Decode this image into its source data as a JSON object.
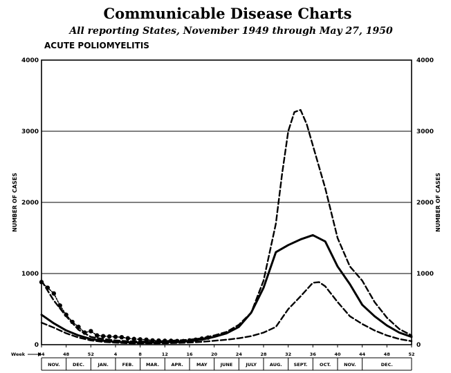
{
  "title": "Communicable Disease Charts",
  "subtitle": "All reporting States, November 1949 through May 27, 1950",
  "chart_data": {
    "type": "line",
    "panel_title": "ACUTE POLIOMYELITIS",
    "ylabel": "NUMBER OF CASES",
    "ylim": [
      0,
      4000
    ],
    "yticks": [
      "0",
      "1000",
      "2000",
      "3000",
      "4000"
    ],
    "week_prefix": "Week",
    "week_ticks": [
      {
        "week": 44,
        "label": "44"
      },
      {
        "week": 48,
        "label": "48"
      },
      {
        "week": 52,
        "label": "52"
      },
      {
        "week": 56,
        "label": "4"
      },
      {
        "week": 60,
        "label": "8"
      },
      {
        "week": 64,
        "label": "12"
      },
      {
        "week": 68,
        "label": "16"
      },
      {
        "week": 72,
        "label": "20"
      },
      {
        "week": 76,
        "label": "24"
      },
      {
        "week": 80,
        "label": "28"
      },
      {
        "week": 84,
        "label": "32"
      },
      {
        "week": 88,
        "label": "36"
      },
      {
        "week": 92,
        "label": "40"
      },
      {
        "week": 96,
        "label": "44"
      },
      {
        "week": 100,
        "label": "48"
      },
      {
        "week": 104,
        "label": "52"
      }
    ],
    "months": [
      {
        "label": "NOV.",
        "start": 44,
        "end": 48
      },
      {
        "label": "DEC.",
        "start": 48,
        "end": 52
      },
      {
        "label": "JAN.",
        "start": 52,
        "end": 56
      },
      {
        "label": "FEB.",
        "start": 56,
        "end": 60
      },
      {
        "label": "MAR.",
        "start": 60,
        "end": 64
      },
      {
        "label": "APR.",
        "start": 64,
        "end": 68
      },
      {
        "label": "MAY",
        "start": 68,
        "end": 72
      },
      {
        "label": "JUNE",
        "start": 72,
        "end": 76
      },
      {
        "label": "JULY",
        "start": 76,
        "end": 80
      },
      {
        "label": "AUG.",
        "start": 80,
        "end": 84
      },
      {
        "label": "SEPT.",
        "start": 84,
        "end": 88
      },
      {
        "label": "OCT.",
        "start": 88,
        "end": 92
      },
      {
        "label": "NOV.",
        "start": 92,
        "end": 96
      },
      {
        "label": "DEC.",
        "start": 96,
        "end": 104
      }
    ],
    "series": [
      {
        "style": "dashed-upper",
        "x": [
          44,
          46,
          48,
          50,
          52,
          54,
          56,
          58,
          60,
          62,
          64,
          66,
          68,
          70,
          72,
          74,
          76,
          78,
          80,
          82,
          83,
          84,
          85,
          86,
          87,
          88,
          90,
          92,
          94,
          96,
          98,
          100,
          102,
          104
        ],
        "y": [
          900,
          620,
          400,
          210,
          110,
          80,
          60,
          50,
          45,
          45,
          50,
          60,
          70,
          90,
          130,
          180,
          280,
          450,
          900,
          1700,
          2400,
          3000,
          3270,
          3300,
          3100,
          2800,
          2200,
          1500,
          1100,
          900,
          600,
          380,
          220,
          130
        ]
      },
      {
        "style": "solid-median",
        "x": [
          44,
          46,
          48,
          50,
          52,
          54,
          56,
          58,
          60,
          62,
          64,
          66,
          68,
          70,
          72,
          74,
          76,
          78,
          80,
          82,
          84,
          86,
          88,
          90,
          92,
          94,
          96,
          98,
          100,
          102,
          104
        ],
        "y": [
          420,
          300,
          200,
          130,
          80,
          55,
          40,
          35,
          30,
          30,
          35,
          40,
          50,
          70,
          110,
          160,
          250,
          450,
          800,
          1300,
          1400,
          1480,
          1540,
          1450,
          1100,
          850,
          560,
          400,
          270,
          170,
          110
        ]
      },
      {
        "style": "dashed-lower",
        "x": [
          44,
          46,
          48,
          50,
          52,
          54,
          56,
          58,
          60,
          62,
          64,
          66,
          68,
          70,
          72,
          74,
          76,
          78,
          80,
          82,
          84,
          86,
          88,
          89,
          90,
          92,
          94,
          96,
          98,
          100,
          102,
          104
        ],
        "y": [
          310,
          240,
          160,
          100,
          60,
          40,
          28,
          20,
          18,
          18,
          20,
          24,
          30,
          40,
          55,
          70,
          90,
          120,
          170,
          250,
          500,
          680,
          870,
          880,
          820,
          600,
          400,
          290,
          200,
          130,
          80,
          50
        ]
      },
      {
        "style": "current-dotted",
        "x": [
          44,
          45,
          46,
          47,
          48,
          49,
          50,
          51,
          52,
          53,
          54,
          55,
          56,
          57,
          58,
          59,
          60,
          61,
          62,
          63,
          64,
          65,
          66,
          67,
          68,
          69,
          70,
          71
        ],
        "y": [
          880,
          800,
          720,
          550,
          420,
          320,
          250,
          170,
          190,
          130,
          120,
          115,
          110,
          105,
          90,
          80,
          75,
          70,
          60,
          58,
          55,
          55,
          52,
          50,
          60,
          70,
          85,
          100
        ]
      }
    ]
  }
}
